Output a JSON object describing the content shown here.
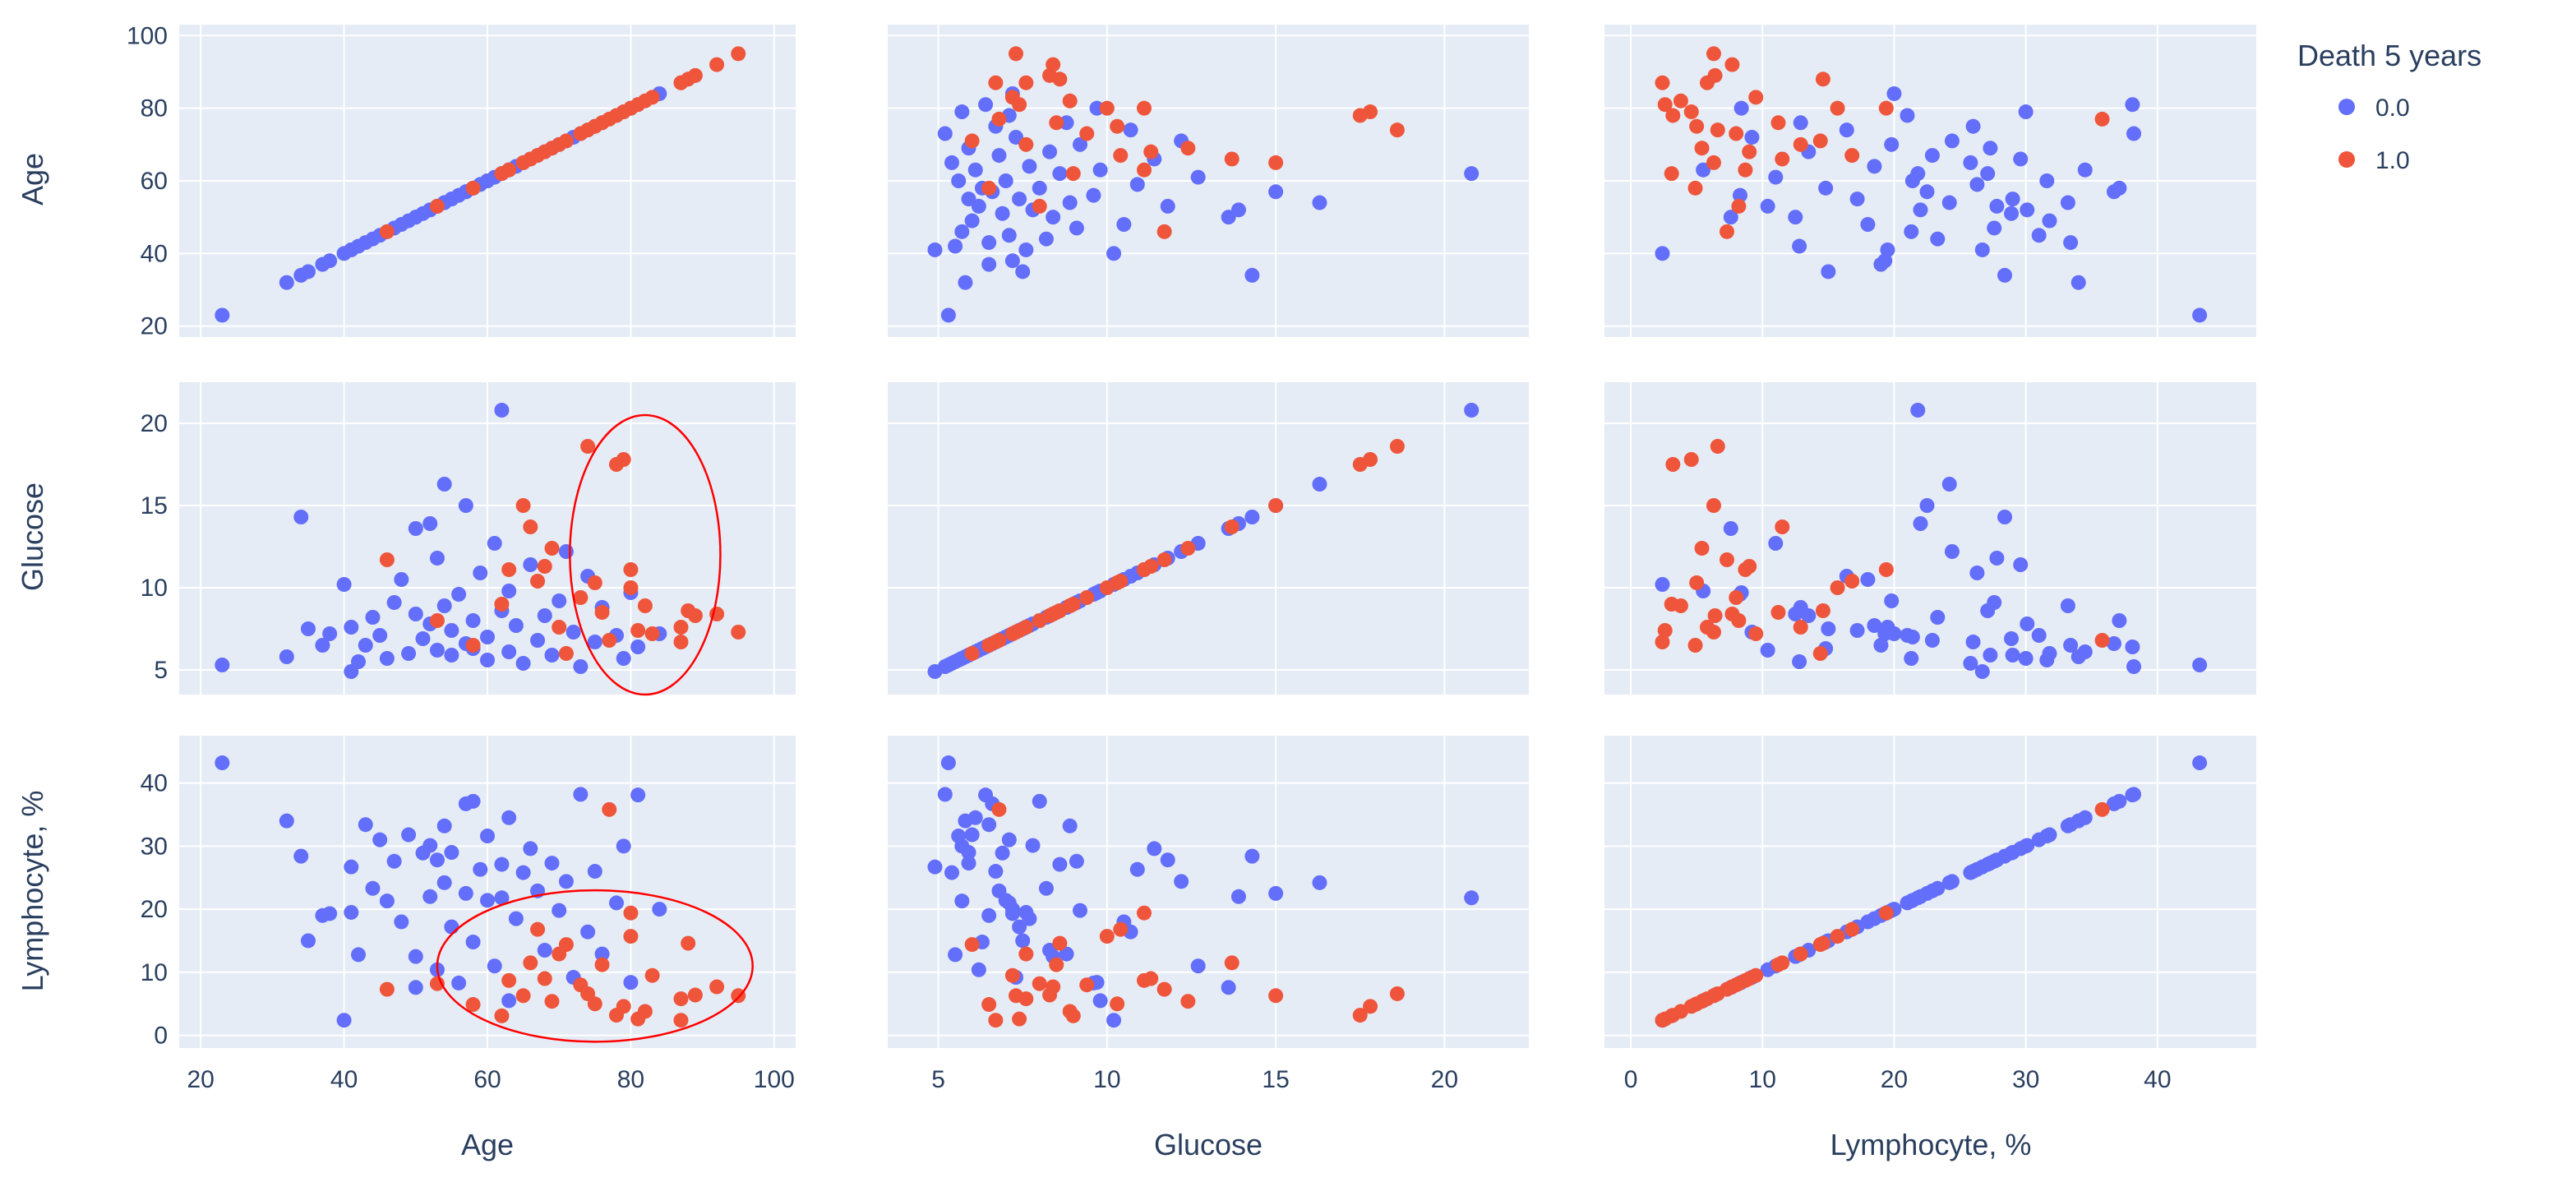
{
  "chart_data": {
    "type": "scatter",
    "title": "",
    "variables": [
      "Age",
      "Glucose",
      "Lymphocyte, %"
    ],
    "axis_labels": {
      "Age": "Age",
      "Glucose": "Glucose",
      "Lymphocyte": "Lymphocyte, %"
    },
    "ranges": {
      "Age": [
        17,
        103
      ],
      "Glucose": [
        3.5,
        22.5
      ],
      "Lymphocyte": [
        -2,
        47.5
      ]
    },
    "ticks": {
      "Age": {
        "x": [
          "20",
          "40",
          "60",
          "80",
          "100"
        ],
        "y": [
          "20",
          "40",
          "60",
          "80",
          "100"
        ]
      },
      "Glucose": {
        "x": [
          "5",
          "10",
          "15",
          "20"
        ],
        "y": [
          "5",
          "10",
          "15",
          "20"
        ]
      },
      "Lymphocyte": {
        "x": [
          "0",
          "10",
          "20",
          "30",
          "40"
        ],
        "y": [
          "0",
          "10",
          "20",
          "30",
          "40"
        ]
      }
    },
    "legend": {
      "title": "Death 5 years",
      "position": "top-right",
      "entries": [
        "0.0",
        "1.0"
      ]
    },
    "colors": {
      "alive": "#636efa",
      "dead": "#ef553b",
      "plot_bg": "#e5ecf6",
      "grid": "#ffffff",
      "annotation": "#ff0000"
    },
    "annotations": [
      {
        "type": "circle",
        "panel": "Glucose vs Age",
        "center": {
          "x": 82,
          "y": 12
        },
        "radius": {
          "x": 10.5,
          "y": 8.5
        }
      },
      {
        "type": "ellipse",
        "panel": "Lymphocyte vs Age",
        "center": {
          "x": 75,
          "y": 11
        },
        "radius": {
          "x": 22,
          "y": 12
        }
      }
    ],
    "series": [
      {
        "name": "0.0",
        "points": [
          {
            "age": 23,
            "glucose": 5.3,
            "lymph": 43.2
          },
          {
            "age": 32,
            "glucose": 5.8,
            "lymph": 34.0
          },
          {
            "age": 34,
            "glucose": 14.3,
            "lymph": 28.4
          },
          {
            "age": 35,
            "glucose": 7.5,
            "lymph": 15.0
          },
          {
            "age": 37,
            "glucose": 6.5,
            "lymph": 19.0
          },
          {
            "age": 38,
            "glucose": 7.2,
            "lymph": 19.3
          },
          {
            "age": 40,
            "glucose": 10.2,
            "lymph": 2.4
          },
          {
            "age": 41,
            "glucose": 4.9,
            "lymph": 26.7
          },
          {
            "age": 41,
            "glucose": 7.6,
            "lymph": 19.5
          },
          {
            "age": 42,
            "glucose": 5.5,
            "lymph": 12.8
          },
          {
            "age": 43,
            "glucose": 6.5,
            "lymph": 33.4
          },
          {
            "age": 44,
            "glucose": 8.2,
            "lymph": 23.3
          },
          {
            "age": 45,
            "glucose": 7.1,
            "lymph": 31.0
          },
          {
            "age": 46,
            "glucose": 5.7,
            "lymph": 21.3
          },
          {
            "age": 47,
            "glucose": 9.1,
            "lymph": 27.6
          },
          {
            "age": 48,
            "glucose": 10.5,
            "lymph": 18.0
          },
          {
            "age": 49,
            "glucose": 6.0,
            "lymph": 31.8
          },
          {
            "age": 50,
            "glucose": 13.6,
            "lymph": 7.6
          },
          {
            "age": 50,
            "glucose": 8.4,
            "lymph": 12.5
          },
          {
            "age": 51,
            "glucose": 6.9,
            "lymph": 28.9
          },
          {
            "age": 52,
            "glucose": 13.9,
            "lymph": 22.0
          },
          {
            "age": 52,
            "glucose": 7.8,
            "lymph": 30.1
          },
          {
            "age": 53,
            "glucose": 11.8,
            "lymph": 27.8
          },
          {
            "age": 53,
            "glucose": 6.2,
            "lymph": 10.4
          },
          {
            "age": 54,
            "glucose": 16.3,
            "lymph": 24.2
          },
          {
            "age": 54,
            "glucose": 8.9,
            "lymph": 33.2
          },
          {
            "age": 55,
            "glucose": 7.4,
            "lymph": 17.2
          },
          {
            "age": 55,
            "glucose": 5.9,
            "lymph": 29.0
          },
          {
            "age": 56,
            "glucose": 9.6,
            "lymph": 8.3
          },
          {
            "age": 57,
            "glucose": 6.6,
            "lymph": 36.7
          },
          {
            "age": 57,
            "glucose": 15.0,
            "lymph": 22.5
          },
          {
            "age": 58,
            "glucose": 8.0,
            "lymph": 37.1
          },
          {
            "age": 58,
            "glucose": 6.3,
            "lymph": 14.8
          },
          {
            "age": 59,
            "glucose": 10.9,
            "lymph": 26.3
          },
          {
            "age": 60,
            "glucose": 7.0,
            "lymph": 21.4
          },
          {
            "age": 60,
            "glucose": 5.6,
            "lymph": 31.6
          },
          {
            "age": 61,
            "glucose": 12.7,
            "lymph": 11.0
          },
          {
            "age": 62,
            "glucose": 20.8,
            "lymph": 21.8
          },
          {
            "age": 62,
            "glucose": 8.6,
            "lymph": 27.1
          },
          {
            "age": 63,
            "glucose": 6.1,
            "lymph": 34.5
          },
          {
            "age": 63,
            "glucose": 9.8,
            "lymph": 5.5
          },
          {
            "age": 64,
            "glucose": 7.7,
            "lymph": 18.5
          },
          {
            "age": 65,
            "glucose": 5.4,
            "lymph": 25.8
          },
          {
            "age": 66,
            "glucose": 11.4,
            "lymph": 29.6
          },
          {
            "age": 67,
            "glucose": 6.8,
            "lymph": 22.9
          },
          {
            "age": 68,
            "glucose": 8.3,
            "lymph": 13.5
          },
          {
            "age": 69,
            "glucose": 5.9,
            "lymph": 27.3
          },
          {
            "age": 70,
            "glucose": 9.2,
            "lymph": 19.8
          },
          {
            "age": 71,
            "glucose": 12.2,
            "lymph": 24.4
          },
          {
            "age": 72,
            "glucose": 7.3,
            "lymph": 9.2
          },
          {
            "age": 73,
            "glucose": 5.2,
            "lymph": 38.2
          },
          {
            "age": 74,
            "glucose": 10.7,
            "lymph": 16.4
          },
          {
            "age": 75,
            "glucose": 6.7,
            "lymph": 26.0
          },
          {
            "age": 76,
            "glucose": 8.8,
            "lymph": 12.9
          },
          {
            "age": 78,
            "glucose": 7.1,
            "lymph": 21.0
          },
          {
            "age": 79,
            "glucose": 5.7,
            "lymph": 30.0
          },
          {
            "age": 80,
            "glucose": 9.7,
            "lymph": 8.4
          },
          {
            "age": 81,
            "glucose": 6.4,
            "lymph": 38.1
          },
          {
            "age": 84,
            "glucose": 7.2,
            "lymph": 20.0
          }
        ]
      },
      {
        "name": "1.0",
        "points": [
          {
            "age": 46,
            "glucose": 11.7,
            "lymph": 7.3
          },
          {
            "age": 53,
            "glucose": 8.0,
            "lymph": 8.2
          },
          {
            "age": 58,
            "glucose": 6.5,
            "lymph": 4.9
          },
          {
            "age": 62,
            "glucose": 9.0,
            "lymph": 3.1
          },
          {
            "age": 63,
            "glucose": 11.1,
            "lymph": 8.7
          },
          {
            "age": 65,
            "glucose": 15.0,
            "lymph": 6.3
          },
          {
            "age": 66,
            "glucose": 13.7,
            "lymph": 11.5
          },
          {
            "age": 67,
            "glucose": 10.4,
            "lymph": 16.8
          },
          {
            "age": 68,
            "glucose": 11.3,
            "lymph": 9.0
          },
          {
            "age": 69,
            "glucose": 12.4,
            "lymph": 5.4
          },
          {
            "age": 70,
            "glucose": 7.6,
            "lymph": 12.9
          },
          {
            "age": 71,
            "glucose": 6.0,
            "lymph": 14.4
          },
          {
            "age": 73,
            "glucose": 9.4,
            "lymph": 8.0
          },
          {
            "age": 74,
            "glucose": 18.6,
            "lymph": 6.6
          },
          {
            "age": 75,
            "glucose": 10.3,
            "lymph": 5.0
          },
          {
            "age": 76,
            "glucose": 8.5,
            "lymph": 11.2
          },
          {
            "age": 77,
            "glucose": 6.8,
            "lymph": 35.8
          },
          {
            "age": 78,
            "glucose": 17.5,
            "lymph": 3.2
          },
          {
            "age": 79,
            "glucose": 17.8,
            "lymph": 4.6
          },
          {
            "age": 80,
            "glucose": 11.1,
            "lymph": 19.4
          },
          {
            "age": 80,
            "glucose": 10.0,
            "lymph": 15.7
          },
          {
            "age": 81,
            "glucose": 7.4,
            "lymph": 2.6
          },
          {
            "age": 82,
            "glucose": 8.9,
            "lymph": 3.8
          },
          {
            "age": 83,
            "glucose": 7.2,
            "lymph": 9.5
          },
          {
            "age": 87,
            "glucose": 7.6,
            "lymph": 5.8
          },
          {
            "age": 87,
            "glucose": 6.7,
            "lymph": 2.4
          },
          {
            "age": 88,
            "glucose": 8.6,
            "lymph": 14.6
          },
          {
            "age": 89,
            "glucose": 8.3,
            "lymph": 6.4
          },
          {
            "age": 92,
            "glucose": 8.4,
            "lymph": 7.7
          },
          {
            "age": 95,
            "glucose": 7.3,
            "lymph": 6.3
          }
        ]
      }
    ]
  }
}
